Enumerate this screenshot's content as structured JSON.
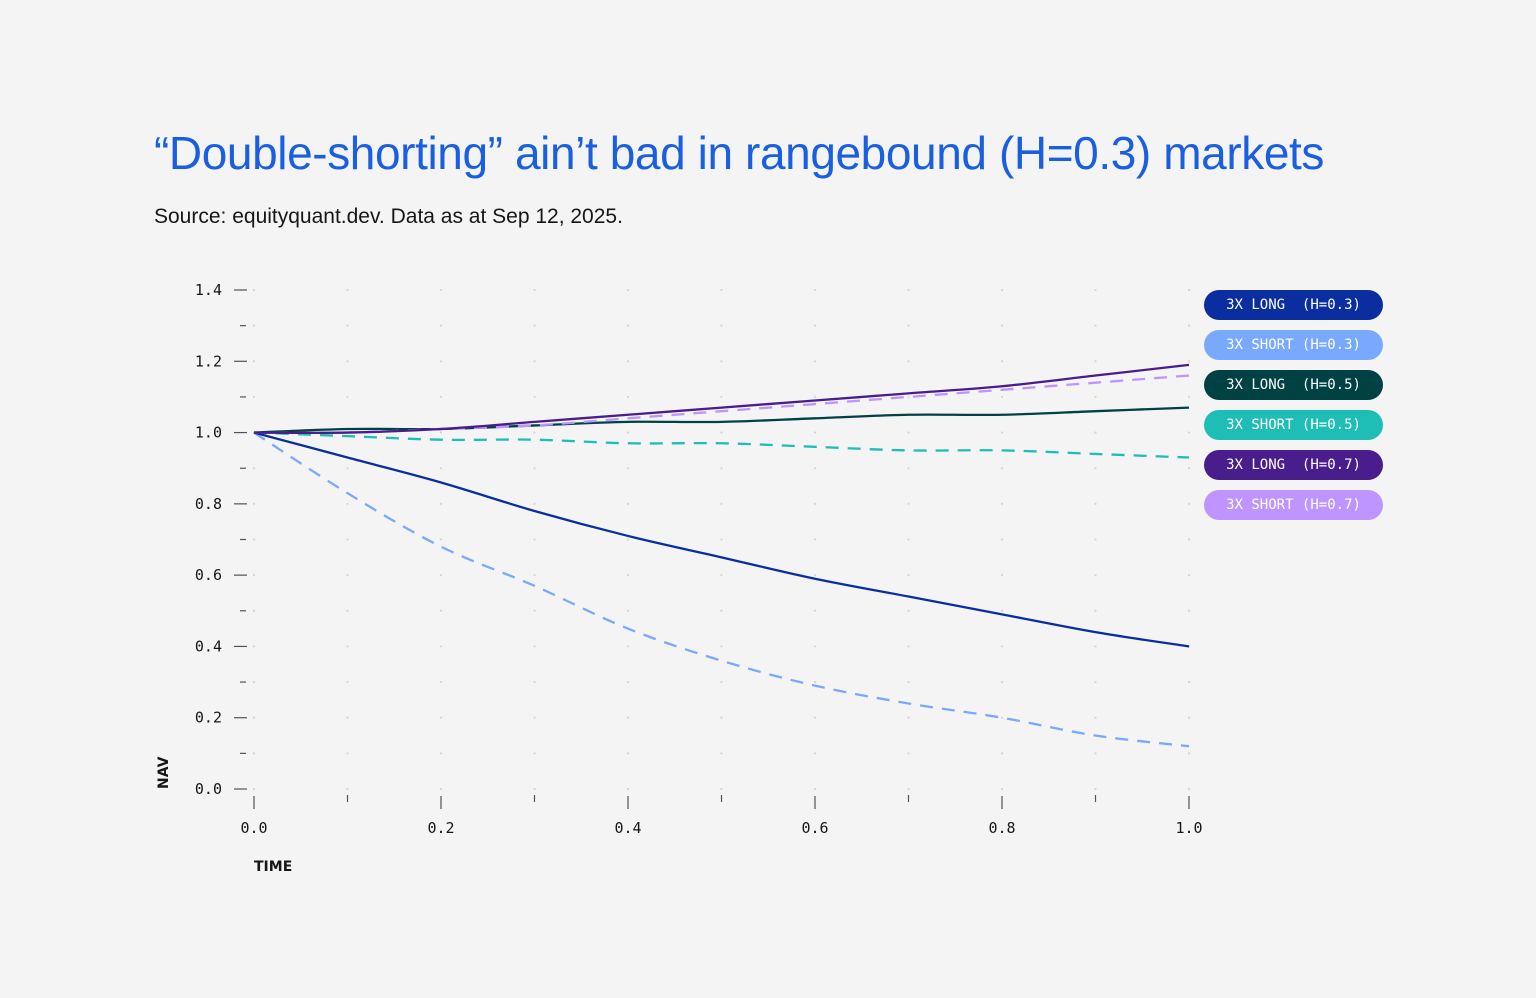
{
  "header": {
    "title": "“Double-shorting” ain’t bad in rangebound (H=0.3) markets",
    "subtitle": "Source: equityquant.dev. Data as at Sep 12, 2025."
  },
  "colors": {
    "background": "#f4f4f4",
    "title": "#1a5fe0",
    "text": "#161616",
    "grid_dot": "#d4d4d4",
    "tick": "#525252"
  },
  "axes": {
    "x_title": "TIME",
    "y_title": "NAV",
    "x_ticks": [
      "0.0",
      "0.2",
      "0.4",
      "0.6",
      "0.8",
      "1.0"
    ],
    "y_ticks": [
      "0.0",
      "0.2",
      "0.4",
      "0.6",
      "0.8",
      "1.0",
      "1.2",
      "1.4"
    ]
  },
  "legend": [
    {
      "label": "3X LONG  (H=0.3)",
      "color": "#0a2ea0"
    },
    {
      "label": "3X SHORT (H=0.3)",
      "color": "#78a9ff"
    },
    {
      "label": "3X LONG  (H=0.5)",
      "color": "#004144"
    },
    {
      "label": "3X SHORT (H=0.5)",
      "color": "#1ebdb5"
    },
    {
      "label": "3X LONG  (H=0.7)",
      "color": "#491d8b"
    },
    {
      "label": "3X SHORT (H=0.7)",
      "color": "#be95ff"
    }
  ],
  "chart_data": {
    "type": "line",
    "title": "“Double-shorting” ain’t bad in rangebound (H=0.3) markets",
    "subtitle": "Source: equityquant.dev. Data as at Sep 12, 2025.",
    "xlabel": "TIME",
    "ylabel": "NAV",
    "xlim": [
      0.0,
      1.0
    ],
    "ylim": [
      0.0,
      1.4
    ],
    "x_ticks": [
      0.0,
      0.2,
      0.4,
      0.6,
      0.8,
      1.0
    ],
    "y_ticks": [
      0.0,
      0.2,
      0.4,
      0.6,
      0.8,
      1.0,
      1.2,
      1.4
    ],
    "grid": "dotted",
    "legend_position": "right",
    "x": [
      0.0,
      0.1,
      0.2,
      0.3,
      0.4,
      0.5,
      0.6,
      0.7,
      0.8,
      0.9,
      1.0
    ],
    "series": [
      {
        "name": "3X LONG (H=0.3)",
        "style": "solid",
        "color": "#0a2ea0",
        "values": [
          1.0,
          0.93,
          0.86,
          0.78,
          0.71,
          0.65,
          0.59,
          0.54,
          0.49,
          0.44,
          0.4
        ]
      },
      {
        "name": "3X SHORT (H=0.3)",
        "style": "dashed",
        "color": "#78a9ff",
        "values": [
          1.0,
          0.83,
          0.68,
          0.57,
          0.45,
          0.36,
          0.29,
          0.24,
          0.2,
          0.15,
          0.12
        ]
      },
      {
        "name": "3X LONG (H=0.5)",
        "style": "solid",
        "color": "#004144",
        "values": [
          1.0,
          1.01,
          1.01,
          1.02,
          1.03,
          1.03,
          1.04,
          1.05,
          1.05,
          1.06,
          1.07
        ]
      },
      {
        "name": "3X SHORT (H=0.5)",
        "style": "dashed",
        "color": "#1ebdb5",
        "values": [
          1.0,
          0.99,
          0.98,
          0.98,
          0.97,
          0.97,
          0.96,
          0.95,
          0.95,
          0.94,
          0.93
        ]
      },
      {
        "name": "3X LONG (H=0.7)",
        "style": "solid",
        "color": "#491d8b",
        "values": [
          1.0,
          1.0,
          1.01,
          1.03,
          1.05,
          1.07,
          1.09,
          1.11,
          1.13,
          1.16,
          1.19
        ]
      },
      {
        "name": "3X SHORT (H=0.7)",
        "style": "dashed",
        "color": "#be95ff",
        "values": [
          1.0,
          1.0,
          1.01,
          1.02,
          1.04,
          1.06,
          1.08,
          1.1,
          1.12,
          1.14,
          1.16
        ]
      }
    ]
  }
}
